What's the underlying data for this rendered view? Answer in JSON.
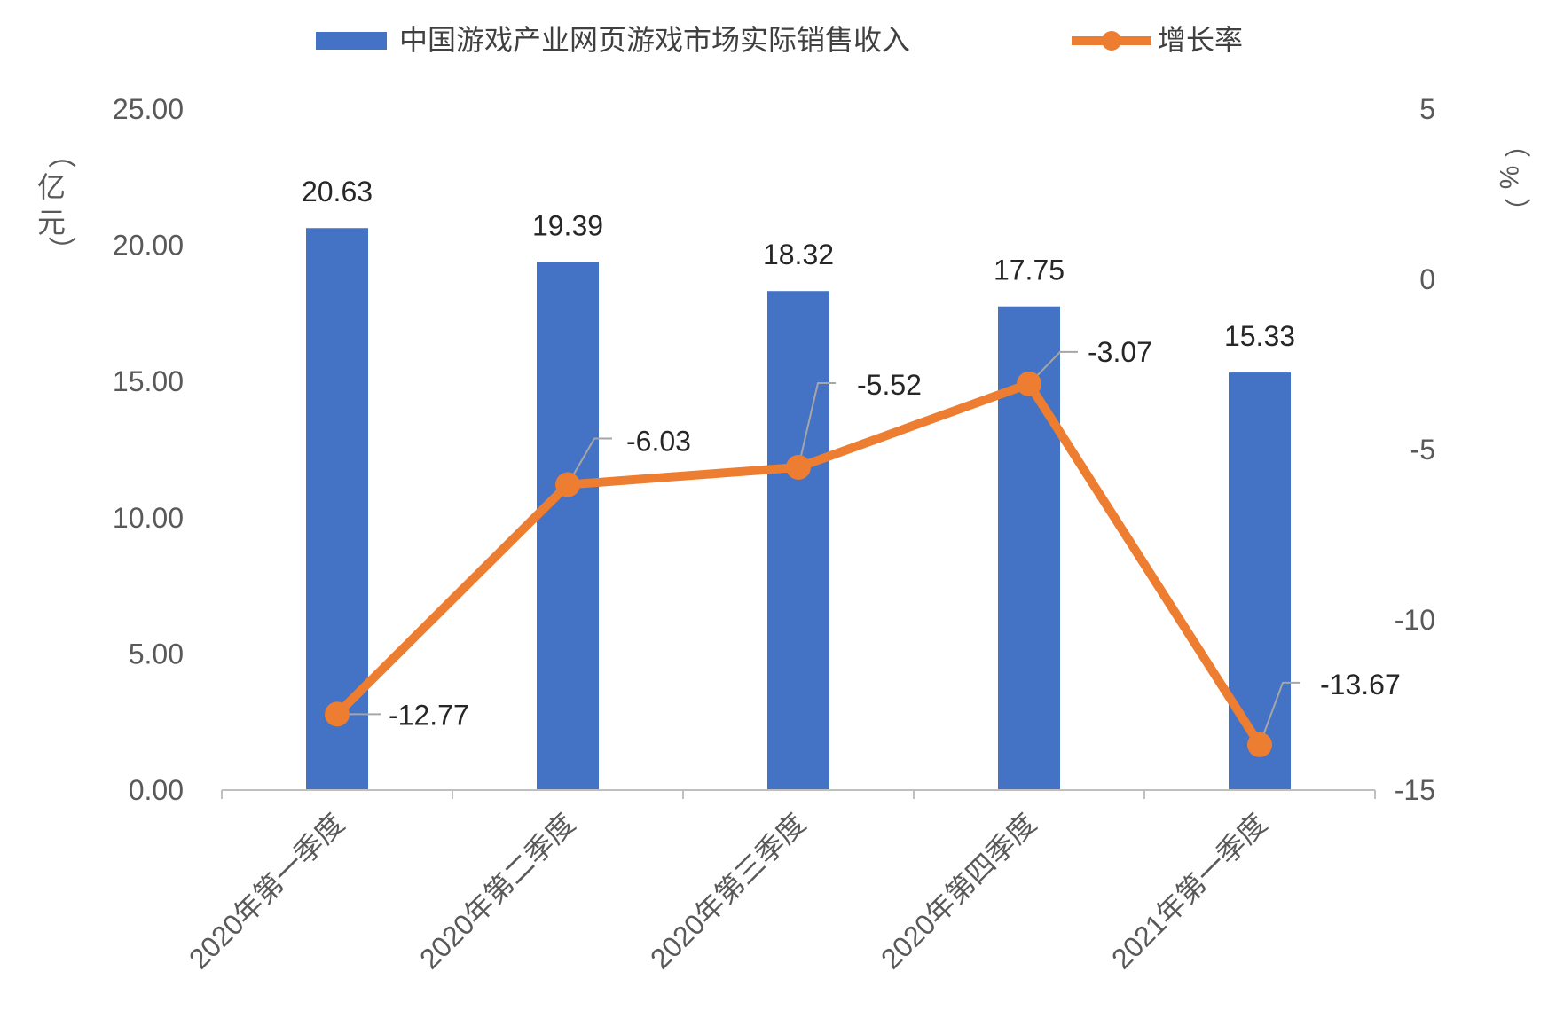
{
  "chart_data": {
    "type": "bar",
    "categories": [
      "2020年第一季度",
      "2020年第二季度",
      "2020年第三季度",
      "2020年第四季度",
      "2021年第一季度"
    ],
    "series": [
      {
        "name": "中国游戏产业网页游戏市场实际销售收入",
        "type": "bar",
        "axis": "left",
        "color": "#4472C4",
        "values": [
          20.63,
          19.39,
          18.32,
          17.75,
          15.33
        ],
        "labels": [
          "20.63",
          "19.39",
          "18.32",
          "17.75",
          "15.33"
        ]
      },
      {
        "name": "增长率",
        "type": "line",
        "axis": "right",
        "color": "#ED7D31",
        "values": [
          -12.77,
          -6.03,
          -5.52,
          -3.07,
          -13.67
        ],
        "labels": [
          "-12.77",
          "-6.03",
          "-5.52",
          "-3.07",
          "-13.67"
        ]
      }
    ],
    "y_left": {
      "label": "（亿元）",
      "ylim": [
        0,
        25
      ],
      "ticks": [
        "0.00",
        "5.00",
        "10.00",
        "15.00",
        "20.00",
        "25.00"
      ]
    },
    "y_right": {
      "label": "（%）",
      "ylim": [
        -15,
        5
      ],
      "ticks": [
        "-15",
        "-10",
        "-5",
        "0",
        "5"
      ]
    },
    "legend_position": "top",
    "grid": false
  }
}
